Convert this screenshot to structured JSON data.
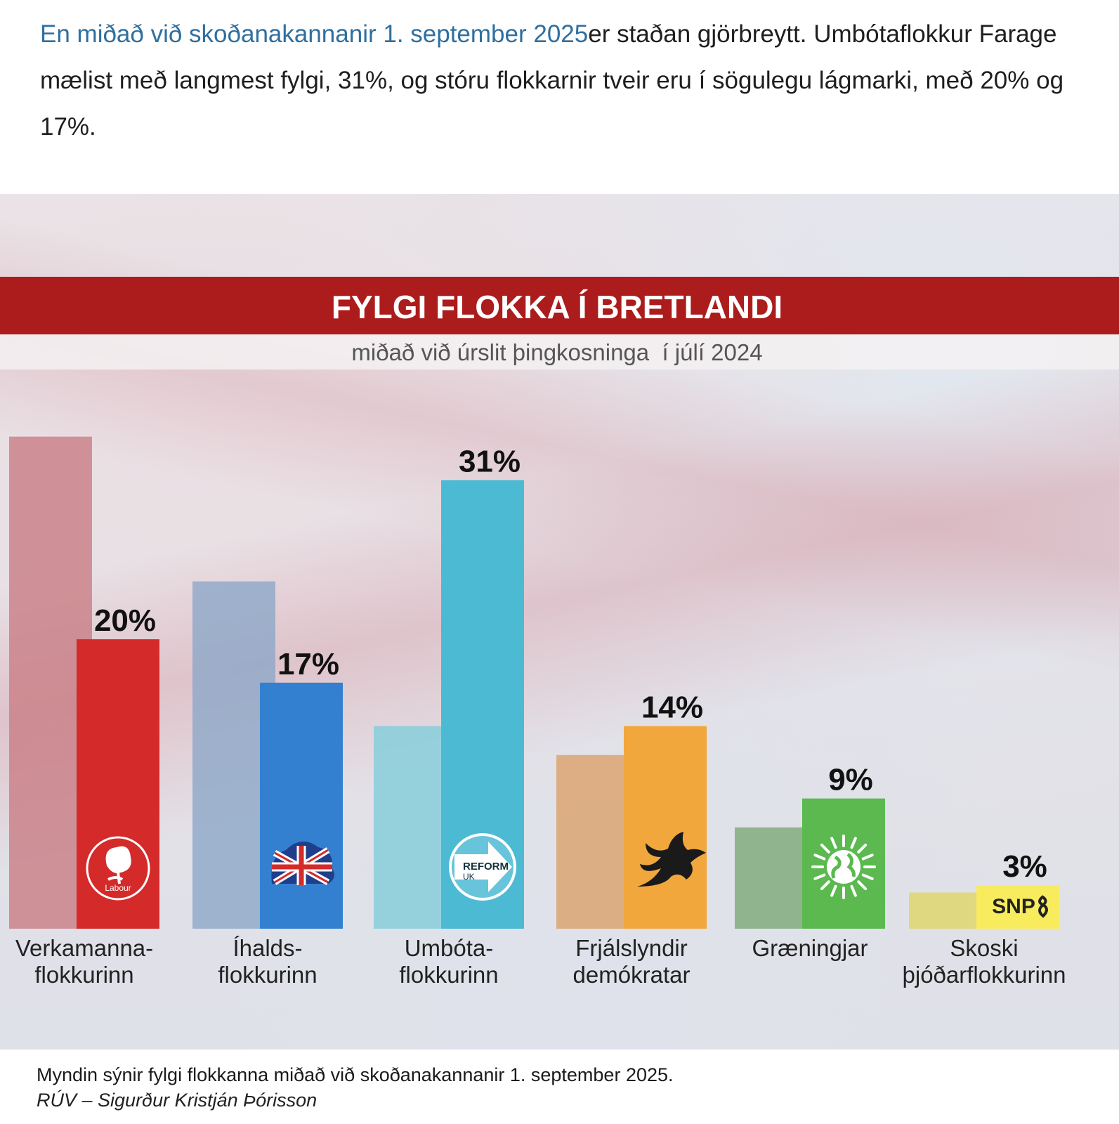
{
  "intro": {
    "link_text": "En miðað við skoðanakannanir 1. september 2025",
    "text": "er staðan gjörbreytt. Umbótaflokkur Farage mælist með langmest fylgi, 31%, og stóru flokkarnir tveir eru í sögulegu lágmarki, með 20% og 17%."
  },
  "caption": {
    "text": "Myndin sýnir fylgi flokkanna miðað við skoðanakannanir 1. september 2025.",
    "credit": "RÚV – Sigurður Kristján Þórisson"
  },
  "chart_data": {
    "type": "bar",
    "title": "FYLGI FLOKKA Í BRETLANDI",
    "subtitle": "miðað við úrslit þingkosninga  í júlí 2024",
    "categories": [
      "Verkamanna-\nflokkurinn",
      "Íhalds-\nflokkurinn",
      "Umbóta-\nflokkurinn",
      "Frjálslyndir\ndemókratar",
      "Græningjar",
      "Skoski\nþjóðarflokkurinn"
    ],
    "series": [
      {
        "values": [
          34,
          24,
          14,
          12,
          7,
          2.5
        ],
        "colors": [
          "#c97f86",
          "#8fa8c8",
          "#84cdda",
          "#dca26d",
          "#7ea97a",
          "#dfd66a"
        ]
      },
      {
        "values": [
          20,
          17,
          31,
          14,
          9,
          3
        ],
        "labels": [
          "20%",
          "17%",
          "31%",
          "14%",
          "9%",
          "3%"
        ],
        "colors": [
          "#d42a2a",
          "#3380d0",
          "#4dbad4",
          "#f2a73c",
          "#5bb94f",
          "#f8ec5e"
        ]
      }
    ],
    "ylim": [
      0,
      35
    ],
    "logos": [
      "labour-rose",
      "union-flag-tree",
      "reform-uk-arrow",
      "lib-dem-bird",
      "green-earth",
      "snp"
    ],
    "logo_text": {
      "labour": "Labour",
      "reform_1": "REFORM",
      "reform_2": "UK",
      "snp": "SNP"
    },
    "colors": {
      "title_band": "#ac1c1c",
      "title_text": "#ffffff"
    }
  }
}
